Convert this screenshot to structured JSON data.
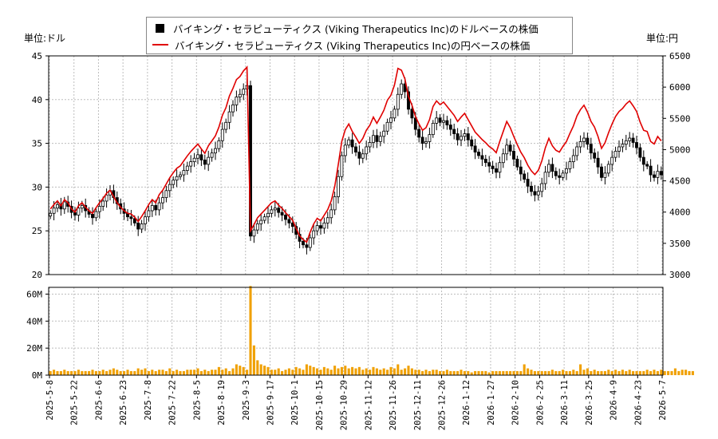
{
  "unit_left": "単位:ドル",
  "unit_right": "単位:円",
  "legend": {
    "dollar_label": "バイキング・セラピューティクス (Viking Therapeutics Inc)のドルベースの株価",
    "yen_label": "バイキング・セラピューティクス (Viking Therapeutics Inc)の円ベースの株価"
  },
  "colors": {
    "candle": "#000000",
    "yen_line": "#e00000",
    "volume": "#f0a000"
  },
  "chart_data": {
    "type": "line",
    "x_labels": [
      "2025-5-8",
      "2025-5-22",
      "2025-6-6",
      "2025-6-23",
      "2025-7-8",
      "2025-7-22",
      "2025-8-5",
      "2025-8-19",
      "2025-9-3",
      "2025-9-17",
      "2025-10-1",
      "2025-10-15",
      "2025-10-29",
      "2025-11-12",
      "2025-11-26",
      "2025-12-11",
      "2025-12-26",
      "2026-1-12",
      "2026-1-27",
      "2026-2-10",
      "2026-2-25",
      "2026-3-11",
      "2026-3-25",
      "2026-4-9",
      "2026-4-23",
      "2026-5-7"
    ],
    "y_left": {
      "ylim": [
        20,
        45
      ],
      "ticks": [
        "20",
        "25",
        "30",
        "35",
        "40",
        "45"
      ]
    },
    "y_right": {
      "ylim": [
        3000,
        6500
      ],
      "ticks": [
        "3000",
        "3500",
        "4000",
        "4500",
        "5000",
        "5500",
        "6000",
        "6500"
      ]
    },
    "y_volume": {
      "ylim": [
        0,
        65
      ],
      "ticks": [
        "0M",
        "20M",
        "40M",
        "60M"
      ]
    },
    "price_usd_close": [
      27,
      27.6,
      28,
      27.5,
      28.3,
      27.8,
      27.1,
      26.8,
      27.6,
      27.9,
      27.3,
      26.9,
      26.5,
      27.2,
      27.8,
      28.4,
      29.1,
      29.6,
      28.8,
      28.1,
      27.5,
      27,
      26.6,
      26.4,
      25.9,
      25.2,
      25.8,
      26.6,
      27.3,
      27.9,
      27.4,
      28.2,
      28.8,
      29.6,
      30.3,
      30.8,
      31.2,
      31.4,
      31.9,
      32.4,
      32.9,
      33.3,
      33.7,
      33.1,
      32.6,
      33.4,
      33.9,
      34.4,
      35.3,
      36.6,
      37.4,
      38.6,
      39.4,
      40.3,
      40.6,
      41.2,
      41.6,
      24.4,
      25.1,
      25.8,
      26.2,
      26.6,
      27,
      27.4,
      27.6,
      27.1,
      26.8,
      26.3,
      25.9,
      25.5,
      24.6,
      23.8,
      23.4,
      23.1,
      24.2,
      25,
      25.6,
      25.3,
      25.9,
      26.5,
      27.4,
      28.9,
      31.2,
      33.6,
      34.8,
      35.4,
      34.6,
      34,
      33.3,
      33.8,
      34.6,
      35.1,
      35.9,
      35.2,
      35.8,
      36.4,
      37.4,
      37.9,
      38.9,
      40.6,
      41.8,
      40.9,
      38.9,
      37.9,
      36.6,
      35.7,
      35,
      35.2,
      36,
      37.3,
      37.9,
      37.4,
      37.6,
      37.1,
      36.6,
      36.1,
      35.4,
      35.8,
      36.1,
      35.4,
      34.7,
      34,
      33.6,
      33.2,
      32.8,
      32.4,
      32.1,
      31.7,
      32.8,
      33.8,
      34.8,
      34.1,
      33.2,
      32.3,
      31.5,
      30.9,
      30.1,
      29.5,
      29.1,
      29.5,
      30.4,
      31.7,
      32.6,
      31.8,
      31.3,
      31.1,
      31.6,
      32.1,
      32.9,
      33.6,
      34.6,
      35.2,
      35.6,
      34.9,
      33.9,
      33.3,
      32.3,
      31.1,
      31.6,
      32.6,
      33.4,
      34.1,
      34.6,
      34.9,
      35.3,
      35.6,
      35.1,
      34.5,
      33.4,
      32.6,
      32.4,
      31.4,
      31.1,
      31.8,
      31.4
    ],
    "price_jpy_close": [
      4050,
      4120,
      4180,
      4100,
      4200,
      4150,
      4050,
      4000,
      4100,
      4150,
      4080,
      4020,
      3980,
      4070,
      4150,
      4220,
      4300,
      4350,
      4250,
      4150,
      4080,
      4020,
      3980,
      3970,
      3920,
      3850,
      3930,
      4020,
      4120,
      4200,
      4150,
      4280,
      4350,
      4450,
      4550,
      4630,
      4700,
      4740,
      4820,
      4900,
      4970,
      5030,
      5090,
      5010,
      4940,
      5060,
      5140,
      5220,
      5360,
      5550,
      5670,
      5860,
      5980,
      6120,
      6170,
      6260,
      6320,
      3700,
      3800,
      3910,
      3970,
      4030,
      4090,
      4150,
      4180,
      4110,
      4060,
      3990,
      3930,
      3870,
      3740,
      3620,
      3560,
      3520,
      3680,
      3810,
      3900,
      3860,
      3950,
      4040,
      4180,
      4410,
      4760,
      5130,
      5320,
      5410,
      5290,
      5200,
      5100,
      5180,
      5310,
      5390,
      5520,
      5420,
      5520,
      5630,
      5790,
      5870,
      6030,
      6300,
      6270,
      6130,
      5850,
      5710,
      5530,
      5410,
      5310,
      5350,
      5480,
      5690,
      5780,
      5720,
      5760,
      5690,
      5620,
      5550,
      5450,
      5520,
      5580,
      5480,
      5380,
      5280,
      5220,
      5160,
      5110,
      5050,
      5010,
      4950,
      5130,
      5290,
      5450,
      5350,
      5210,
      5080,
      4960,
      4870,
      4750,
      4660,
      4600,
      4670,
      4820,
      5030,
      5180,
      5060,
      4990,
      4960,
      5050,
      5130,
      5260,
      5380,
      5540,
      5640,
      5710,
      5600,
      5450,
      5360,
      5210,
      5020,
      5110,
      5270,
      5410,
      5530,
      5610,
      5660,
      5730,
      5780,
      5700,
      5610,
      5440,
      5310,
      5290,
      5130,
      5090,
      5210,
      5140
    ],
    "volume_m": [
      3,
      4,
      3,
      3,
      4,
      3,
      3,
      3,
      4,
      3,
      3,
      3,
      4,
      3,
      3,
      4,
      3,
      4,
      5,
      4,
      3,
      3,
      4,
      3,
      3,
      5,
      4,
      5,
      3,
      4,
      3,
      4,
      4,
      3,
      5,
      3,
      4,
      3,
      3,
      4,
      4,
      4,
      5,
      3,
      4,
      3,
      4,
      4,
      6,
      4,
      5,
      3,
      5,
      8,
      7,
      6,
      4,
      66,
      22,
      11,
      8,
      7,
      6,
      4,
      4,
      5,
      3,
      4,
      5,
      4,
      6,
      5,
      4,
      8,
      7,
      6,
      5,
      4,
      6,
      5,
      4,
      7,
      5,
      6,
      7,
      5,
      6,
      5,
      6,
      4,
      5,
      4,
      6,
      5,
      4,
      5,
      4,
      6,
      5,
      8,
      4,
      5,
      7,
      5,
      4,
      4,
      3,
      4,
      3,
      4,
      4,
      3,
      3,
      4,
      3,
      3,
      3,
      4,
      3,
      3,
      2,
      3,
      3,
      3,
      3,
      2,
      3,
      3,
      3,
      3,
      3,
      3,
      3,
      3,
      3,
      8,
      5,
      4,
      3,
      3,
      3,
      3,
      3,
      4,
      3,
      3,
      4,
      3,
      3,
      4,
      3,
      8,
      4,
      5,
      3,
      4,
      3,
      3,
      3,
      4,
      3,
      4,
      3,
      4,
      3,
      4,
      3,
      3,
      3,
      3,
      4,
      3,
      4,
      3,
      4,
      3,
      3,
      3,
      5,
      3,
      4,
      4,
      3,
      3
    ]
  }
}
